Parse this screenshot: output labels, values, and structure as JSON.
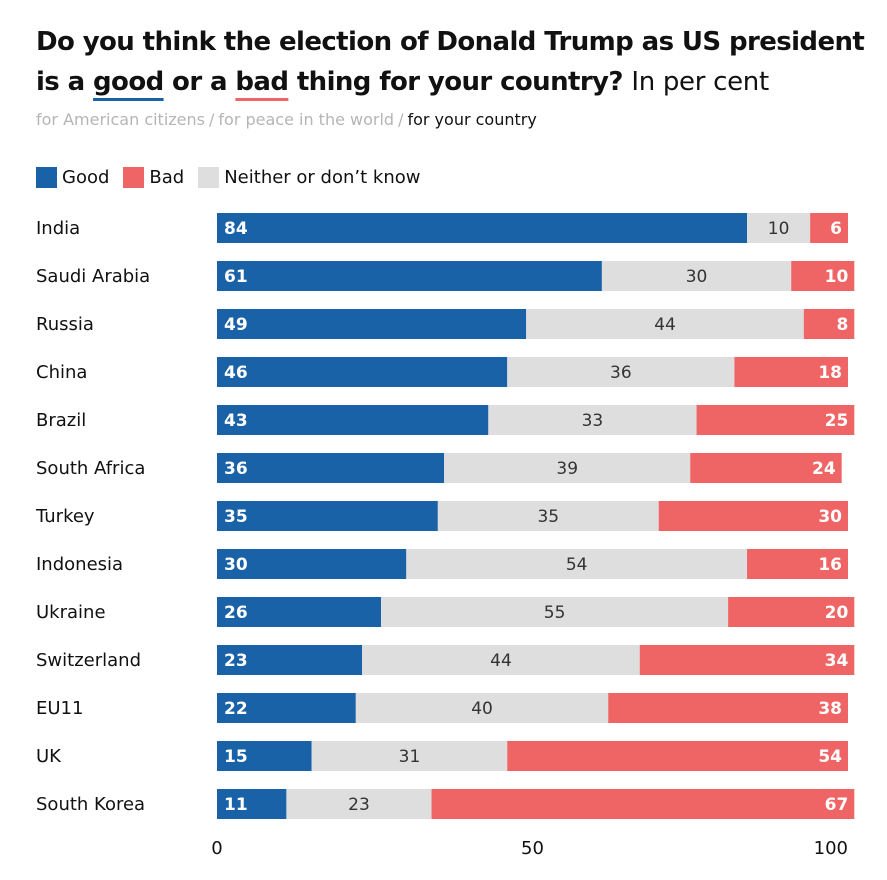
{
  "title": {
    "part1": "Do you think the election of Donald Trump as US president is a ",
    "good": "good",
    "part2": " or a ",
    "bad": "bad",
    "part3": " thing for your country?",
    "unit": "In per cent"
  },
  "tabs": {
    "items": [
      "for American citizens",
      "for peace in the world",
      "for your country"
    ],
    "active_index": 2,
    "separator": "/"
  },
  "colors": {
    "good": "#1a62a8",
    "bad": "#ef6565",
    "neither": "#dedede"
  },
  "chart_data": {
    "type": "bar",
    "orientation": "horizontal",
    "stacked": true,
    "categories": [
      "India",
      "Saudi Arabia",
      "Russia",
      "China",
      "Brazil",
      "South Africa",
      "Turkey",
      "Indonesia",
      "Ukraine",
      "Switzerland",
      "EU11",
      "UK",
      "South Korea"
    ],
    "series": [
      {
        "name": "Good",
        "values": [
          84,
          61,
          49,
          46,
          43,
          36,
          35,
          30,
          26,
          23,
          22,
          15,
          11
        ]
      },
      {
        "name": "Neither or don’t know",
        "values": [
          10,
          30,
          44,
          36,
          33,
          39,
          35,
          54,
          55,
          44,
          40,
          31,
          23
        ]
      },
      {
        "name": "Bad",
        "values": [
          6,
          10,
          8,
          18,
          25,
          24,
          30,
          16,
          20,
          34,
          38,
          54,
          67
        ]
      }
    ],
    "legend": [
      "Good",
      "Bad",
      "Neither or don’t know"
    ],
    "xlim": [
      0,
      100
    ],
    "xticks": [
      0,
      50,
      100
    ],
    "grid": false,
    "legend_position": "top-left"
  }
}
